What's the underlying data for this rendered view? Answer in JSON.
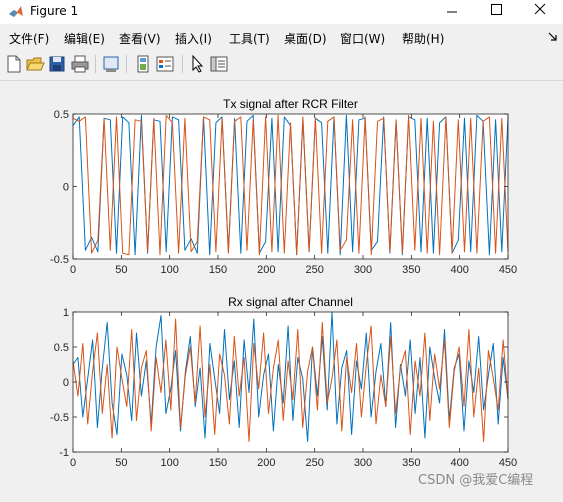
{
  "window": {
    "title": "Figure 1"
  },
  "menu": {
    "items": [
      {
        "label": "文件(F)"
      },
      {
        "label": "编辑(E)"
      },
      {
        "label": "查看(V)"
      },
      {
        "label": "插入(I)"
      },
      {
        "label": "工具(T)"
      },
      {
        "label": "桌面(D)"
      },
      {
        "label": "窗口(W)"
      },
      {
        "label": "帮助(H)"
      }
    ]
  },
  "toolbar": {
    "icons": [
      "new-figure-icon",
      "open-file-icon",
      "save-icon",
      "print-icon",
      "print-preview-icon",
      "link-plot-icon",
      "insert-legend-icon",
      "edit-plot-icon",
      "property-inspector-icon"
    ]
  },
  "colors": {
    "series1": "#0072bd",
    "series2": "#d95319",
    "axes_bg": "#ffffff"
  },
  "chart_data": [
    {
      "type": "line",
      "title": "Tx signal after RCR Filter",
      "xlim": [
        0,
        450
      ],
      "ylim": [
        -0.5,
        0.5
      ],
      "xticks": [
        "0",
        "50",
        "100",
        "150",
        "200",
        "250",
        "300",
        "350",
        "400",
        "450"
      ],
      "yticks": [
        "0.5",
        "0",
        "-0.5"
      ],
      "series": [
        {
          "color": "#0072bd",
          "values": [
            0.42,
            0.48,
            -0.44,
            -0.35,
            -0.45,
            0.47,
            0.46,
            -0.46,
            0.48,
            0.44,
            -0.47,
            0.49,
            -0.46,
            0.46,
            0.45,
            -0.45,
            0.48,
            0.46,
            -0.44,
            -0.36,
            -0.46,
            0.48,
            -0.47,
            0.44,
            0.48,
            -0.45,
            0.47,
            -0.46,
            0.45,
            0.49,
            -0.46,
            -0.38,
            0.47,
            -0.45,
            0.48,
            0.42,
            -0.47,
            0.46,
            -0.45,
            0.47,
            0.44,
            -0.46,
            0.48,
            -0.47,
            0.49,
            -0.45,
            0.46,
            0.47,
            -0.44,
            -0.38,
            0.48,
            -0.46,
            0.45,
            -0.47,
            0.48,
            0.46,
            -0.45,
            0.47,
            -0.46,
            0.44,
            0.48,
            -0.46,
            -0.37,
            0.47,
            -0.45,
            0.49,
            0.45,
            -0.47,
            0.46,
            -0.45,
            0.48
          ]
        },
        {
          "color": "#d95319",
          "values": [
            0.47,
            0.45,
            0.48,
            -0.46,
            -0.37,
            0.47,
            -0.44,
            0.48,
            -0.46,
            -0.47,
            0.46,
            0.45,
            -0.45,
            0.47,
            -0.47,
            0.49,
            0.44,
            -0.46,
            0.47,
            -0.45,
            -0.38,
            0.48,
            0.46,
            -0.45,
            0.47,
            -0.46,
            0.45,
            0.48,
            -0.44,
            0.46,
            -0.47,
            0.48,
            -0.45,
            0.49,
            -0.46,
            0.44,
            -0.47,
            0.48,
            -0.45,
            0.47,
            -0.46,
            0.45,
            0.48,
            -0.44,
            -0.37,
            0.46,
            -0.46,
            0.48,
            -0.47,
            0.45,
            0.47,
            -0.45,
            0.46,
            -0.46,
            0.49,
            -0.44,
            0.47,
            -0.46,
            0.45,
            -0.47,
            0.48,
            -0.46,
            0.46,
            -0.45,
            0.47,
            -0.46,
            0.45,
            0.48,
            -0.46,
            0.47,
            -0.45
          ]
        }
      ]
    },
    {
      "type": "line",
      "title": "Rx signal after Channel",
      "xlim": [
        0,
        450
      ],
      "ylim": [
        -1,
        1
      ],
      "xticks": [
        "0",
        "50",
        "100",
        "150",
        "200",
        "250",
        "300",
        "350",
        "400",
        "450"
      ],
      "yticks": [
        "1",
        "0.5",
        "0",
        "-0.5",
        "-1"
      ],
      "series": [
        {
          "color": "#0072bd",
          "values": [
            0.25,
            0.35,
            -0.5,
            0.05,
            0.6,
            -0.65,
            0.2,
            0.85,
            -0.3,
            -0.75,
            0.4,
            0.1,
            -0.55,
            0.7,
            -0.2,
            0.3,
            -0.6,
            0.5,
            0.95,
            -0.45,
            -0.1,
            0.45,
            -0.7,
            0.15,
            0.65,
            -0.35,
            0.2,
            -0.8,
            0.55,
            0.05,
            -0.45,
            0.75,
            -0.25,
            0.3,
            -0.65,
            0.6,
            -0.15,
            0.9,
            -0.5,
            0.1,
            0.4,
            -0.7,
            0.25,
            -0.3,
            0.8,
            -0.55,
            0.35,
            0.05,
            -0.85,
            0.5,
            -0.2,
            0.65,
            -0.4,
            1.0,
            -0.6,
            0.2,
            0.45,
            -0.75,
            0.3,
            -0.1,
            0.7,
            -0.5,
            0.15,
            0.55,
            -0.35,
            0.85,
            -0.65,
            0.25,
            -0.2,
            0.6,
            -0.45,
            0.35,
            -0.8,
            0.5,
            0.05,
            -0.3,
            0.75,
            -0.55,
            0.2,
            0.4,
            -0.7,
            0.3,
            -0.15,
            0.65,
            -0.4,
            0.1,
            0.55,
            -0.6,
            0.35,
            -0.25
          ]
        },
        {
          "color": "#d95319",
          "values": [
            0.3,
            -0.2,
            0.55,
            -0.6,
            0.15,
            0.7,
            -0.45,
            0.25,
            -0.8,
            0.5,
            0.05,
            -0.35,
            0.75,
            -0.55,
            0.2,
            0.45,
            -0.7,
            0.35,
            -0.15,
            0.6,
            -0.4,
            0.9,
            -0.65,
            0.1,
            0.5,
            -0.3,
            0.8,
            -0.5,
            0.25,
            -0.75,
            0.4,
            0.1,
            -0.6,
            0.65,
            -0.2,
            0.35,
            -0.85,
            0.55,
            -0.1,
            0.7,
            -0.45,
            0.2,
            0.6,
            -0.55,
            0.3,
            -0.25,
            0.75,
            -0.65,
            0.15,
            0.5,
            -0.4,
            0.85,
            -0.3,
            0.05,
            0.6,
            -0.7,
            0.35,
            -0.15,
            0.55,
            -0.5,
            0.25,
            0.8,
            -0.6,
            0.1,
            -0.35,
            0.65,
            -0.45,
            0.2,
            0.45,
            -0.75,
            0.3,
            -0.2,
            0.7,
            -0.55,
            0.4,
            -0.1,
            0.6,
            -0.65,
            0.15,
            0.5,
            -0.35,
            0.75,
            -0.5,
            0.2,
            -0.85,
            0.45,
            0.05,
            -0.4,
            0.6,
            -0.25
          ]
        }
      ]
    }
  ],
  "watermark": "CSDN @我爱C编程"
}
